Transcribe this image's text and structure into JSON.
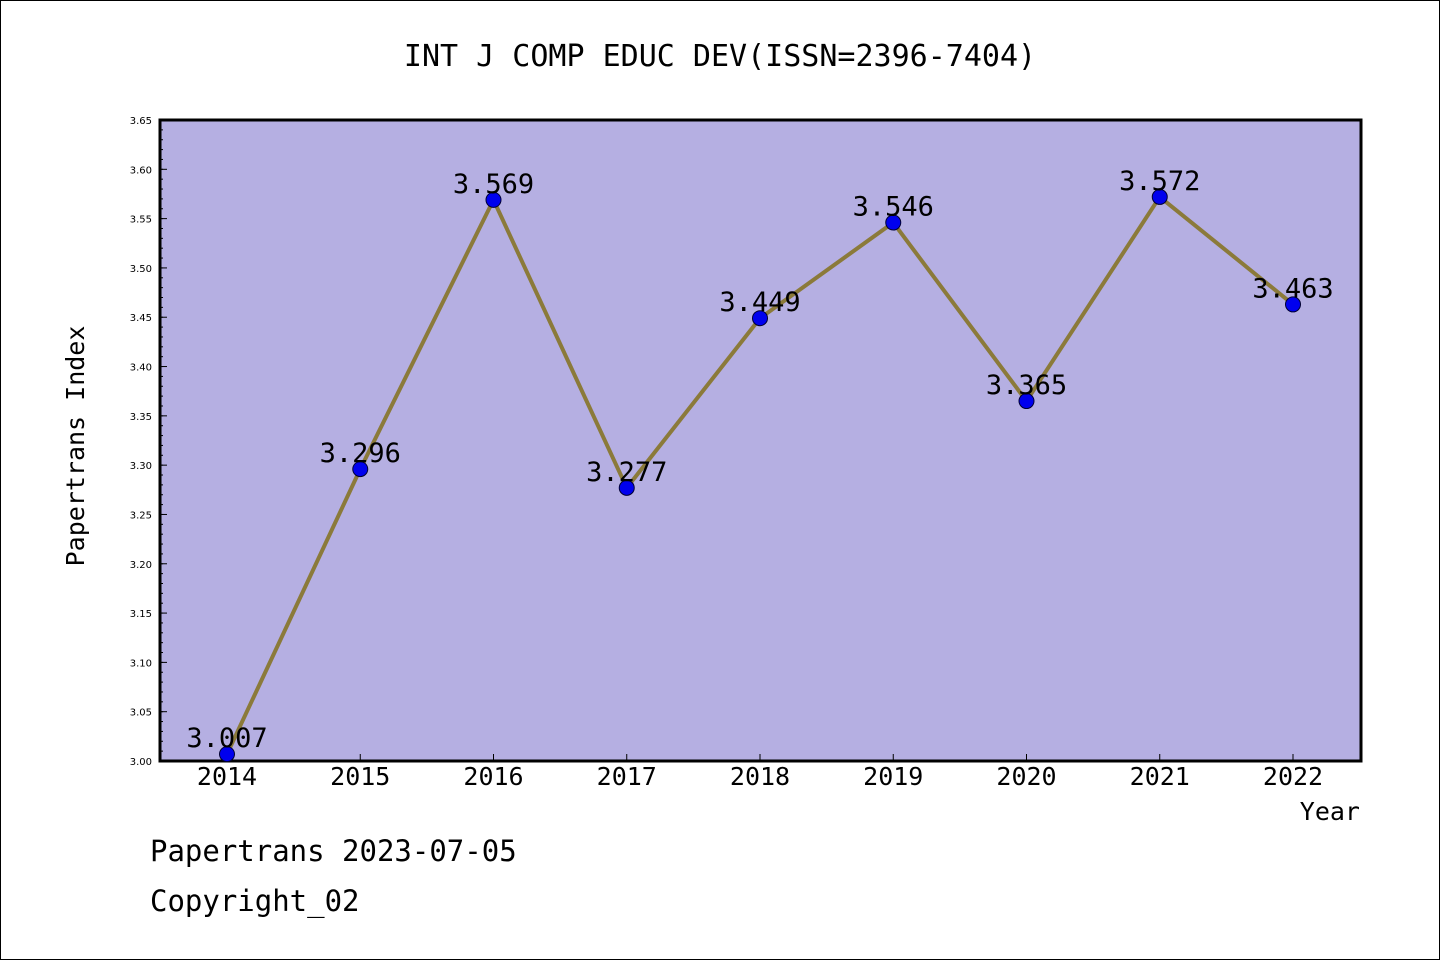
{
  "chart_data": {
    "type": "line",
    "title": "INT J COMP EDUC DEV(ISSN=2396-7404)",
    "xlabel": "Year",
    "ylabel": "Papertrans Index",
    "categories": [
      "2014",
      "2015",
      "2016",
      "2017",
      "2018",
      "2019",
      "2020",
      "2021",
      "2022"
    ],
    "values": [
      3.007,
      3.296,
      3.569,
      3.277,
      3.449,
      3.546,
      3.365,
      3.572,
      3.463
    ],
    "data_labels": [
      "3.007",
      "3.296",
      "3.569",
      "3.277",
      "3.449",
      "3.546",
      "3.365",
      "3.572",
      "3.463"
    ],
    "ylim": [
      3.0,
      3.65
    ],
    "y_ticks": [
      "3.00",
      "3.05",
      "3.10",
      "3.15",
      "3.20",
      "3.25",
      "3.30",
      "3.35",
      "3.40",
      "3.45",
      "3.50",
      "3.55",
      "3.60",
      "3.65"
    ],
    "grid": false,
    "colors": {
      "plot_background": "#b5afe2",
      "line": "#8b7a3a",
      "marker": "#0000ee"
    }
  },
  "footer": {
    "date_text": "Papertrans 2023-07-05",
    "copyright_text": "Copyright_02"
  }
}
